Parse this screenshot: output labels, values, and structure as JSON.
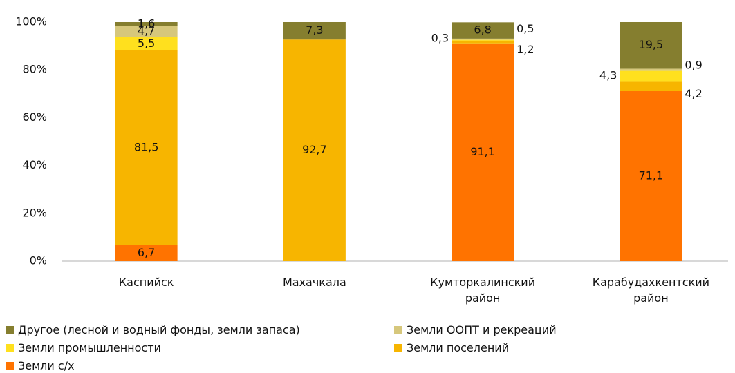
{
  "chart_data": {
    "type": "stacked_bar",
    "categories": [
      "Каспийск",
      "Махачкала",
      "Кумторкалинский район",
      "Карабудахкентский район"
    ],
    "ylim": [
      0,
      100
    ],
    "yticks": [
      {
        "value": 0,
        "label": "0%"
      },
      {
        "value": 20,
        "label": "20%"
      },
      {
        "value": 40,
        "label": "40%"
      },
      {
        "value": 60,
        "label": "60%"
      },
      {
        "value": 80,
        "label": "80%"
      },
      {
        "value": 100,
        "label": "100%"
      }
    ],
    "grid": false,
    "series": [
      {
        "name": "Земли с/х",
        "color": "#ff7300",
        "values": [
          6.7,
          null,
          91.1,
          71.1
        ],
        "value_labels": [
          "6,7",
          null,
          "91,1",
          "71,1"
        ]
      },
      {
        "name": "Земли поселений",
        "color": "#f7b500",
        "values": [
          81.5,
          92.7,
          1.2,
          4.2
        ],
        "value_labels": [
          "81,5",
          "92,7",
          "1,2",
          "4,2"
        ]
      },
      {
        "name": "Земли промышленности",
        "color": "#ffe01e",
        "values": [
          5.5,
          null,
          0.3,
          4.3
        ],
        "value_labels": [
          "5,5",
          null,
          "0,3",
          "4,3"
        ]
      },
      {
        "name": "Земли ООПТ и рекреаций",
        "color": "#d6c77c",
        "values": [
          4.7,
          null,
          0.5,
          0.9
        ],
        "value_labels": [
          "4,7",
          null,
          "0,5",
          "0,9"
        ]
      },
      {
        "name": "Другое (лесной и водный фонды, земли запаса)",
        "color": "#857e2f",
        "values": [
          1.6,
          7.3,
          6.8,
          19.5
        ],
        "value_labels": [
          "1,6",
          "7,3",
          "6,8",
          "19,5"
        ]
      }
    ]
  }
}
